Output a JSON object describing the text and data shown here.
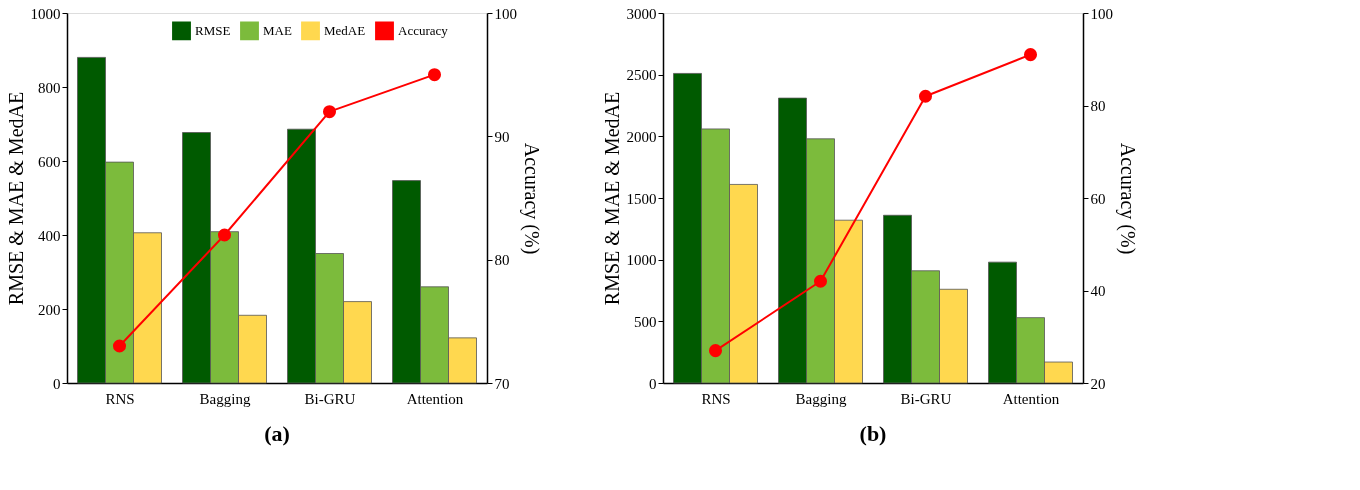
{
  "chart_data": [
    {
      "type": "bar",
      "title": "(a)",
      "categories": [
        "RNS",
        "Bagging",
        "Bi-GRU",
        "Attention"
      ],
      "ylabel": "RMSE & MAE & MedAE",
      "y2label": "Accuracy (%)",
      "ylim": [
        0,
        1000
      ],
      "yticks": [
        0,
        200,
        400,
        600,
        800,
        1000
      ],
      "y2lim": [
        70,
        100
      ],
      "y2ticks": [
        70,
        80,
        90,
        100
      ],
      "legend": "top",
      "grid": false,
      "series": [
        {
          "name": "RMSE",
          "color": "#005a00",
          "values": [
            880,
            677,
            686,
            547
          ]
        },
        {
          "name": "MAE",
          "color": "#7cbb3c",
          "values": [
            597,
            409,
            350,
            260
          ]
        },
        {
          "name": "MedAE",
          "color": "#ffd84f",
          "values": [
            406,
            183,
            220,
            122
          ]
        },
        {
          "name": "Accuracy",
          "type": "line",
          "axis": "y2",
          "color": "#ff0000",
          "marker": "circle",
          "values": [
            73,
            82,
            92,
            95
          ]
        }
      ]
    },
    {
      "type": "bar",
      "title": "(b)",
      "categories": [
        "RNS",
        "Bagging",
        "Bi-GRU",
        "Attention"
      ],
      "ylabel": "RMSE & MAE & MedAE",
      "y2label": "Accuracy (%)",
      "ylim": [
        0,
        3000
      ],
      "yticks": [
        0,
        500,
        1000,
        1500,
        2000,
        2500,
        3000
      ],
      "y2lim": [
        20,
        100
      ],
      "y2ticks": [
        20,
        40,
        60,
        80,
        100
      ],
      "legend": "top",
      "grid": false,
      "series": [
        {
          "name": "RMSE",
          "color": "#005a00",
          "values": [
            2510,
            2310,
            1360,
            980
          ]
        },
        {
          "name": "MAE",
          "color": "#7cbb3c",
          "values": [
            2060,
            1980,
            910,
            530
          ]
        },
        {
          "name": "MedAE",
          "color": "#ffd84f",
          "values": [
            1610,
            1320,
            760,
            170
          ]
        },
        {
          "name": "Accuracy",
          "type": "line",
          "axis": "y2",
          "color": "#ff0000",
          "marker": "circle",
          "values": [
            27,
            42,
            82,
            91
          ]
        }
      ]
    }
  ]
}
